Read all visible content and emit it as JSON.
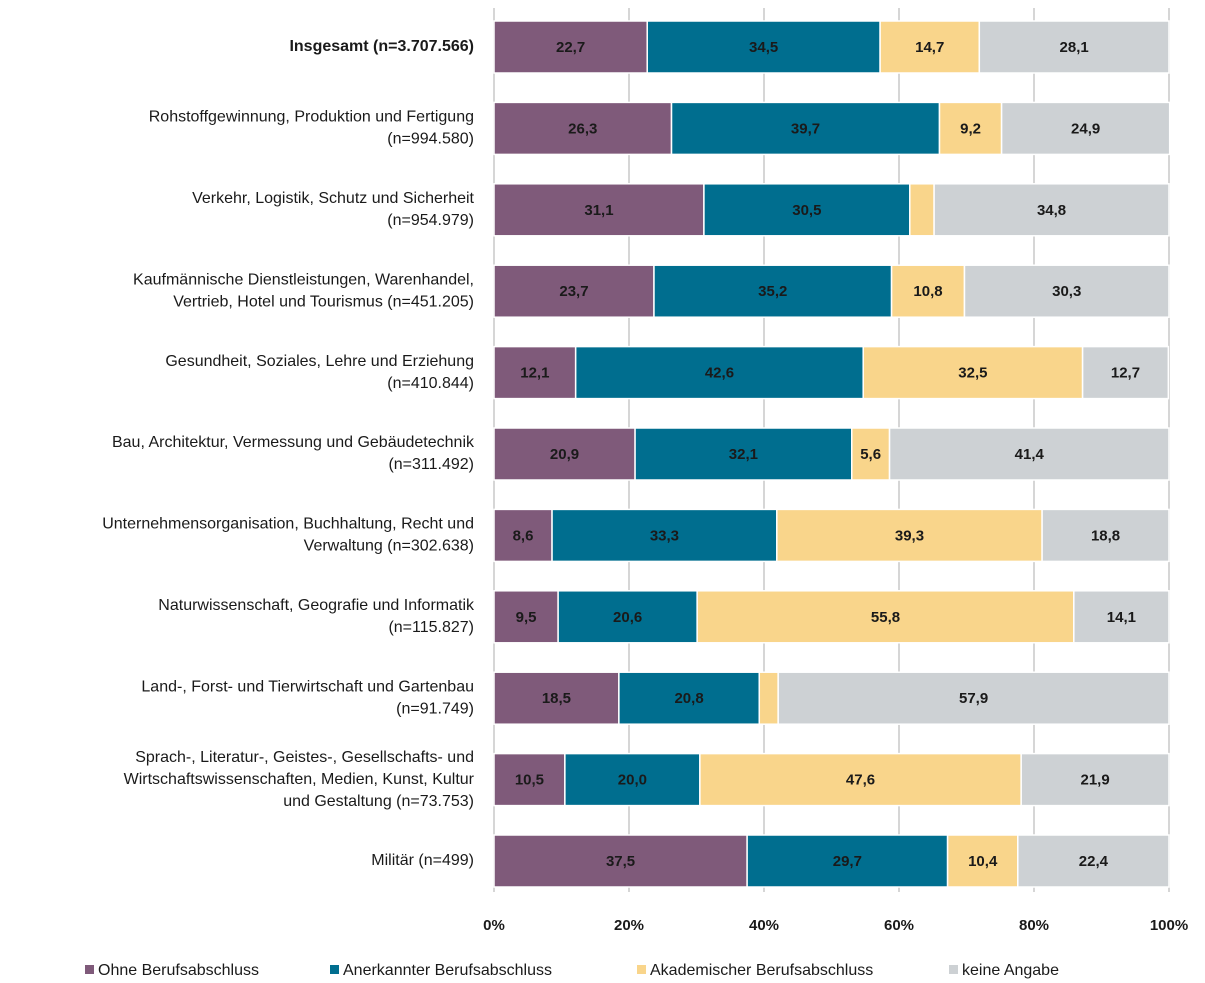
{
  "chart_data": {
    "type": "stacked_barh",
    "categories": [
      [
        "Insgesamt (n=3.707.566)"
      ],
      [
        "Rohstoffgewinnung, Produktion und Fertigung",
        "(n=994.580)"
      ],
      [
        "Verkehr, Logistik, Schutz und Sicherheit",
        "(n=954.979)"
      ],
      [
        "Kaufmännische Dienstleistungen, Warenhandel,",
        "Vertrieb, Hotel und Tourismus (n=451.205)"
      ],
      [
        "Gesundheit, Soziales, Lehre und Erziehung",
        "(n=410.844)"
      ],
      [
        "Bau, Architektur, Vermessung und Gebäudetechnik",
        "(n=311.492)"
      ],
      [
        "Unternehmensorganisation, Buchhaltung, Recht und",
        "Verwaltung (n=302.638)"
      ],
      [
        "Naturwissenschaft, Geografie und Informatik",
        "(n=115.827)"
      ],
      [
        "Land-, Forst- und Tierwirtschaft und Gartenbau",
        "(n=91.749)"
      ],
      [
        "Sprach-, Literatur-, Geistes-, Gesellschafts- und",
        "Wirtschaftswissenschaften, Medien, Kunst, Kultur",
        "und Gestaltung (n=73.753)"
      ],
      [
        "Militär (n=499)"
      ]
    ],
    "bold_categories": [
      0
    ],
    "series": [
      {
        "name": "Ohne Berufsabschluss",
        "color": "#7f5a7a",
        "label_color": "#ffffff",
        "values": [
          22.7,
          26.3,
          31.1,
          23.7,
          12.1,
          20.9,
          8.6,
          9.5,
          18.5,
          10.5,
          37.5
        ],
        "value_labels": [
          "22,7",
          "26,3",
          "31,1",
          "23,7",
          "12,1",
          "20,9",
          "8,6",
          "9,5",
          "18,5",
          "10,5",
          "37,5"
        ]
      },
      {
        "name": "Anerkannter Berufsabschluss",
        "color": "#006e8f",
        "label_color": "#ffffff",
        "values": [
          34.5,
          39.7,
          30.5,
          35.2,
          42.6,
          32.1,
          33.3,
          20.6,
          20.8,
          20.0,
          29.7
        ],
        "value_labels": [
          "34,5",
          "39,7",
          "30,5",
          "35,2",
          "42,6",
          "32,1",
          "33,3",
          "20,6",
          "20,8",
          "20,0",
          "29,7"
        ]
      },
      {
        "name": "Akademischer Berufsabschluss",
        "color": "#f9d58b",
        "label_color": "#1a1a1a",
        "values": [
          14.7,
          9.2,
          3.6,
          10.8,
          32.5,
          5.6,
          39.3,
          55.8,
          2.8,
          47.6,
          10.4
        ],
        "value_labels": [
          "14,7",
          "9,2",
          null,
          "10,8",
          "32,5",
          "5,6",
          "39,3",
          "55,8",
          null,
          "47,6",
          "10,4"
        ]
      },
      {
        "name": "keine Angabe",
        "color": "#cdd1d4",
        "label_color": "#1a1a1a",
        "values": [
          28.1,
          24.9,
          34.8,
          30.3,
          12.7,
          41.4,
          18.8,
          14.1,
          57.9,
          21.9,
          22.4
        ],
        "value_labels": [
          "28,1",
          "24,9",
          "34,8",
          "30,3",
          "12,7",
          "41,4",
          "18,8",
          "14,1",
          "57,9",
          "21,9",
          "22,4"
        ]
      }
    ],
    "xlim": [
      0,
      100
    ],
    "xticks": [
      {
        "value": 0,
        "label": "0%"
      },
      {
        "value": 20,
        "label": "20%"
      },
      {
        "value": 40,
        "label": "40%"
      },
      {
        "value": 60,
        "label": "60%"
      },
      {
        "value": 80,
        "label": "80%"
      },
      {
        "value": 100,
        "label": "100%"
      }
    ],
    "grid": true,
    "legend": "bottom"
  }
}
